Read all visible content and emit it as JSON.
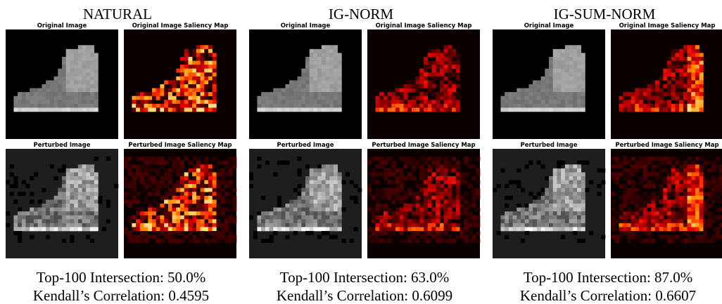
{
  "panels": [
    {
      "title": "NATURAL",
      "images": [
        {
          "caption": "Original Image"
        },
        {
          "caption": "Original Image Saliency Map"
        },
        {
          "caption": "Perturbed Image"
        },
        {
          "caption": "Perturbed Image Saliency Map"
        }
      ],
      "intersection": "Top-100 Intersection: 50.0%",
      "correlation": "Kendall’s Correlation: 0.4595"
    },
    {
      "title": "IG-NORM",
      "images": [
        {
          "caption": "Original Image"
        },
        {
          "caption": "Original Image Saliency Map"
        },
        {
          "caption": "Perturbed Image"
        },
        {
          "caption": "Perturbed Image Saliency Map"
        }
      ],
      "intersection": "Top-100 Intersection: 63.0%",
      "correlation": "Kendall’s Correlation: 0.6099"
    },
    {
      "title": "IG-SUM-NORM",
      "images": [
        {
          "caption": "Original Image"
        },
        {
          "caption": "Original Image Saliency Map"
        },
        {
          "caption": "Perturbed Image"
        },
        {
          "caption": "Perturbed Image Saliency Map"
        }
      ],
      "intersection": "Top-100 Intersection: 87.0%",
      "correlation": "Kendall’s Correlation: 0.6607"
    }
  ]
}
